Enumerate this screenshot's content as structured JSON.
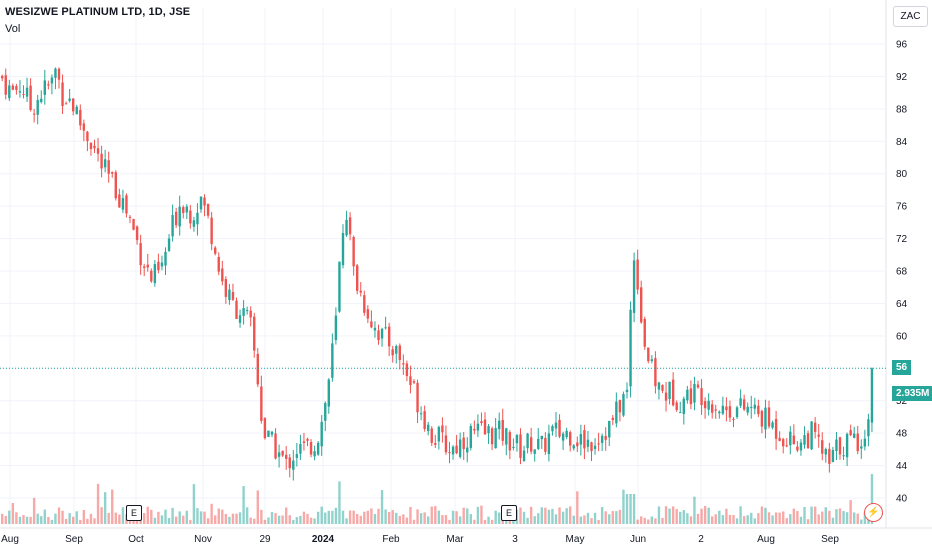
{
  "header": {
    "title": "WESIZWE PLATINUM LTD, 1D, JSE",
    "volume_label": "Vol"
  },
  "currency_button": "ZAC",
  "price_tag": "56",
  "volume_tag": "2.935M",
  "event_markers": [
    "E",
    "E"
  ],
  "colors": {
    "up": "#26a69a",
    "down": "#ef5350",
    "grid": "#f0f3fa",
    "axis_text": "#131722"
  },
  "chart_data": {
    "type": "candlestick",
    "title": "WESIZWE PLATINUM LTD, 1D, JSE",
    "x_axis": {
      "tick_labels": [
        "Aug",
        "Sep",
        "Oct",
        "Nov",
        "29",
        "2024",
        "Feb",
        "Mar",
        "3",
        "May",
        "Jun",
        "2",
        "Aug",
        "Sep"
      ]
    },
    "y_axis": {
      "tick_labels": [
        "96",
        "92",
        "88",
        "84",
        "80",
        "76",
        "72",
        "68",
        "64",
        "60",
        "56",
        "52",
        "48",
        "44",
        "40"
      ],
      "ylim": [
        38,
        98
      ]
    },
    "last_price": 56,
    "last_volume": "2.935M",
    "price_path": [
      [
        0,
        92
      ],
      [
        10,
        90
      ],
      [
        20,
        91
      ],
      [
        30,
        88
      ],
      [
        40,
        90
      ],
      [
        50,
        91
      ],
      [
        55,
        93
      ],
      [
        60,
        90
      ],
      [
        70,
        89
      ],
      [
        80,
        86
      ],
      [
        90,
        84
      ],
      [
        100,
        81
      ],
      [
        110,
        79
      ],
      [
        120,
        77
      ],
      [
        130,
        74
      ],
      [
        140,
        70
      ],
      [
        150,
        67
      ],
      [
        160,
        68
      ],
      [
        170,
        73
      ],
      [
        180,
        77
      ],
      [
        190,
        75
      ],
      [
        200,
        77
      ],
      [
        210,
        73
      ],
      [
        220,
        67
      ],
      [
        230,
        64
      ],
      [
        240,
        63
      ],
      [
        250,
        61
      ],
      [
        258,
        53
      ],
      [
        262,
        48
      ],
      [
        268,
        47
      ],
      [
        275,
        46
      ],
      [
        285,
        44
      ],
      [
        295,
        46
      ],
      [
        305,
        46
      ],
      [
        315,
        47
      ],
      [
        322,
        50
      ],
      [
        328,
        55
      ],
      [
        335,
        62
      ],
      [
        340,
        72
      ],
      [
        345,
        76
      ],
      [
        352,
        68
      ],
      [
        360,
        65
      ],
      [
        370,
        62
      ],
      [
        380,
        60
      ],
      [
        390,
        59
      ],
      [
        400,
        57
      ],
      [
        410,
        54
      ],
      [
        420,
        51
      ],
      [
        430,
        48
      ],
      [
        440,
        47
      ],
      [
        450,
        46
      ],
      [
        460,
        47
      ],
      [
        470,
        48
      ],
      [
        480,
        48
      ],
      [
        490,
        48
      ],
      [
        500,
        48
      ],
      [
        510,
        47
      ],
      [
        520,
        46
      ],
      [
        530,
        47
      ],
      [
        540,
        46
      ],
      [
        550,
        48
      ],
      [
        560,
        48
      ],
      [
        570,
        48
      ],
      [
        580,
        47
      ],
      [
        590,
        47
      ],
      [
        600,
        48
      ],
      [
        610,
        49
      ],
      [
        620,
        52
      ],
      [
        626,
        53
      ],
      [
        630,
        65
      ],
      [
        634,
        72
      ],
      [
        638,
        64
      ],
      [
        645,
        58
      ],
      [
        652,
        55
      ],
      [
        660,
        53
      ],
      [
        670,
        53
      ],
      [
        680,
        52
      ],
      [
        690,
        53
      ],
      [
        700,
        53
      ],
      [
        710,
        52
      ],
      [
        720,
        51
      ],
      [
        730,
        51
      ],
      [
        740,
        51
      ],
      [
        750,
        51
      ],
      [
        760,
        50
      ],
      [
        770,
        49
      ],
      [
        780,
        48
      ],
      [
        790,
        47
      ],
      [
        800,
        47
      ],
      [
        810,
        48
      ],
      [
        820,
        46
      ],
      [
        828,
        44
      ],
      [
        835,
        46
      ],
      [
        845,
        47
      ],
      [
        855,
        47
      ],
      [
        862,
        48
      ],
      [
        868,
        49
      ],
      [
        872,
        56
      ]
    ]
  }
}
